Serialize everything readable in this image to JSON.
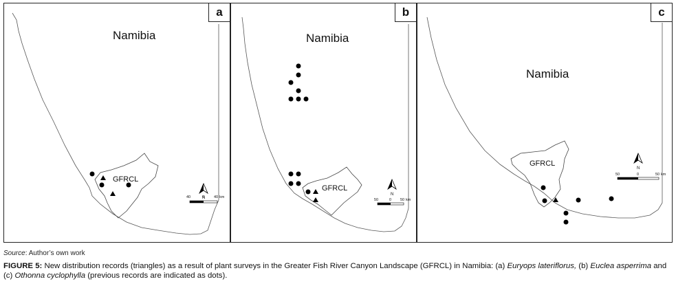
{
  "panels": [
    {
      "letter": "a",
      "country_label": "Namibia",
      "region_label": "GFRCL",
      "scale": {
        "left": "40",
        "zero": "0",
        "right": "40",
        "unit": "km"
      },
      "north": "N"
    },
    {
      "letter": "b",
      "country_label": "Namibia",
      "region_label": "GFRCL",
      "scale": {
        "left": "50",
        "zero": "0",
        "right": "50",
        "unit": "km"
      },
      "north": "N"
    },
    {
      "letter": "c",
      "country_label": "Namibia",
      "region_label": "GFRCL",
      "scale": {
        "left": "50",
        "zero": "0",
        "right": "50",
        "unit": "km"
      },
      "north": "N"
    }
  ],
  "legend_symbols": {
    "triangle": "new distribution record",
    "dot": "previous record"
  },
  "source": {
    "label": "Source",
    "text": ": Author’s own work"
  },
  "caption": {
    "figure": "FIGURE 5:",
    "text_1": " New distribution records (triangles) as a result of plant surveys in the Greater Fish River Canyon Landscape (GFRCL) in Namibia: (a) ",
    "species_a": "Euryops lateriflorus,",
    "text_2": " (b) ",
    "species_b": "Euclea asperrima",
    "text_3": " and (c) ",
    "species_c": "Othonna cyclophylla",
    "text_4": " (previous records are indicated as dots)."
  }
}
